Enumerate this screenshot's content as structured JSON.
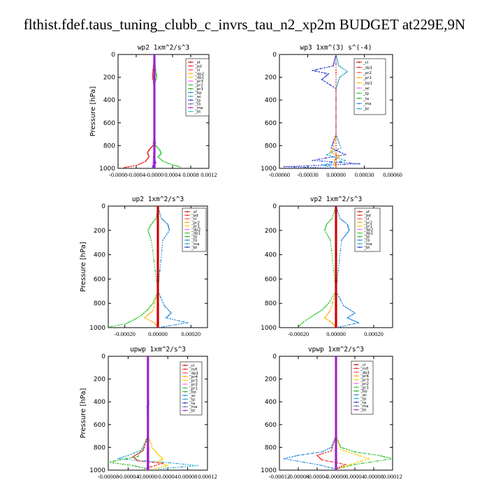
{
  "figure_title": "flthist.fdef.taus_tuning_clubb_c_invrs_tau_n2_xp2m  BUDGET at229E,9N",
  "chart_data": [
    {
      "type": "line",
      "title": "wp2   1xm^2/s^3",
      "ylabel": "Pressure [hPa]",
      "ylim": [
        1000,
        0
      ],
      "xlim": [
        -0.0008,
        0.0012
      ],
      "x_ticks": [
        -0.0008,
        -0.0004,
        0.0,
        0.0004,
        0.0008,
        0.0012
      ],
      "x_tick_labels": [
        "-0.0008",
        "-0.0004",
        "-0.0000",
        "0.0004",
        "0.0008",
        "0.0012"
      ],
      "y_ticks": [
        0,
        200,
        400,
        600,
        800,
        1000
      ],
      "y_tick_labels": [
        "0",
        "200",
        "400",
        "600",
        "800",
        "1000"
      ],
      "legend": [
        "_sf",
        "_pd",
        "_cl",
        "_dp2",
        "_dp1",
        "_pr3",
        "_pr2",
        "_pr1",
        "_bp",
        "_ac",
        "_tp",
        "_ta",
        "_ma",
        "_bt"
      ],
      "series": [
        {
          "name": "_bp",
          "color": "#33cc33",
          "x": [
            0,
            2e-05,
            4e-05,
            5e-05,
            0,
            0,
            3e-05,
            0.00012,
            0.00015,
            8e-05,
            0.0002,
            0.0004,
            0.0006
          ],
          "y": [
            0,
            100,
            170,
            200,
            260,
            700,
            800,
            840,
            870,
            900,
            940,
            970,
            990
          ]
        },
        {
          "name": "_dp1",
          "color": "#ee2222",
          "x": [
            0,
            -2e-05,
            -4e-05,
            -3e-05,
            0,
            0,
            -3e-05,
            -0.0001,
            -0.00015,
            -0.00012,
            -0.0002,
            -0.0004,
            -0.0007
          ],
          "y": [
            0,
            100,
            170,
            220,
            300,
            700,
            800,
            830,
            860,
            900,
            940,
            975,
            995
          ]
        },
        {
          "name": "_pr1",
          "color": "#ff66ff",
          "x": [
            0,
            0,
            1e-05,
            0,
            -1e-05,
            -3e-05,
            -2e-05,
            0
          ],
          "y": [
            0,
            300,
            700,
            800,
            880,
            950,
            985,
            1000
          ]
        },
        {
          "name": "_ta",
          "color": "#2233cc",
          "x": [
            0,
            0,
            1e-05,
            -2e-05,
            3e-05,
            -4e-05,
            0
          ],
          "y": [
            0,
            700,
            850,
            900,
            950,
            985,
            1000
          ]
        },
        {
          "name": "_bt",
          "color": "#9922cc",
          "x": [
            0,
            0,
            0,
            0
          ],
          "y": [
            0,
            400,
            800,
            1000
          ]
        }
      ]
    },
    {
      "type": "line",
      "title": "wp3   1xm^(3) s^(-4)",
      "ylabel": "",
      "ylim": [
        1000,
        0
      ],
      "xlim": [
        -0.0006,
        0.0006
      ],
      "x_ticks": [
        -0.0006,
        -0.0003,
        0.0,
        0.0003,
        0.0006
      ],
      "x_tick_labels": [
        "-0.00060",
        "-0.00030",
        "0.00000",
        "0.00030",
        "0.00060"
      ],
      "y_ticks": [
        0,
        200,
        400,
        600,
        800,
        1000
      ],
      "y_tick_labels": [
        "0",
        "200",
        "400",
        "600",
        "800",
        "1000"
      ],
      "legend": [
        "_cl",
        "_dp1",
        "_pr2",
        "_pr1",
        "_bp1",
        "_ac",
        "_tp",
        "_ta",
        "_ma",
        "_bt"
      ],
      "series": [
        {
          "name": "_ta",
          "color": "#2233cc",
          "x": [
            0,
            -3e-05,
            -0.00025,
            -8e-05,
            -0.00015,
            0,
            0,
            -5e-05,
            0.0001,
            -0.00025,
            0.00025,
            -0.00055,
            0
          ],
          "y": [
            0,
            100,
            140,
            170,
            220,
            300,
            700,
            820,
            880,
            930,
            960,
            985,
            1000
          ]
        },
        {
          "name": "_tp",
          "color": "#22aacc",
          "x": [
            0,
            3e-05,
            0.00012,
            4e-05,
            0,
            0,
            5e-05,
            -0.0001,
            0.0001,
            -0.00015,
            0
          ],
          "y": [
            0,
            100,
            150,
            200,
            300,
            700,
            820,
            880,
            930,
            970,
            1000
          ]
        },
        {
          "name": "_pr1",
          "color": "#ffaa00",
          "x": [
            0,
            0,
            -3e-05,
            -6e-05,
            4e-05,
            -2e-05,
            0
          ],
          "y": [
            0,
            700,
            830,
            860,
            890,
            930,
            1000
          ]
        },
        {
          "name": "_dp1",
          "color": "#ee2222",
          "x": [
            0,
            0,
            0,
            0
          ],
          "y": [
            0,
            400,
            800,
            1000
          ]
        }
      ]
    },
    {
      "type": "line",
      "title": "up2   1xm^2/s^3",
      "ylabel": "Pressure [hPa]",
      "ylim": [
        1000,
        0
      ],
      "xlim": [
        -0.0003,
        0.0003
      ],
      "x_ticks": [
        -0.0002,
        0.0,
        0.0002
      ],
      "x_tick_labels": [
        "-0.00020",
        "0.00000",
        "0.00020"
      ],
      "y_ticks": [
        0,
        200,
        400,
        600,
        800,
        1000
      ],
      "y_tick_labels": [
        "0",
        "200",
        "400",
        "600",
        "800",
        "1000"
      ],
      "legend": [
        "_sf",
        "_pd",
        "_cl",
        "_pr2",
        "_pr1",
        "_dp2",
        "_dp1",
        "_tp",
        "_ta",
        "_ma",
        "_bt"
      ],
      "series": [
        {
          "name": "_pr1",
          "color": "#33cc33",
          "x": [
            0,
            -1e-05,
            -4e-05,
            -6e-05,
            -4e-05,
            0,
            -3e-05,
            -6e-05,
            -0.0001,
            -0.00015,
            -0.0002,
            -0.0003
          ],
          "y": [
            0,
            100,
            150,
            200,
            280,
            700,
            800,
            850,
            900,
            940,
            970,
            995
          ]
        },
        {
          "name": "_tp",
          "color": "#2288dd",
          "x": [
            0,
            2e-05,
            6e-05,
            7e-05,
            3e-05,
            0,
            4e-05,
            8e-05,
            5e-05,
            0.00018,
            0
          ],
          "y": [
            0,
            100,
            150,
            200,
            280,
            700,
            820,
            880,
            920,
            960,
            1000
          ]
        },
        {
          "name": "_pr2",
          "color": "#ffaa00",
          "x": [
            0,
            0,
            -3e-05,
            -8e-05,
            -2e-05,
            0
          ],
          "y": [
            0,
            700,
            860,
            920,
            960,
            1000
          ]
        },
        {
          "name": "_bt",
          "color": "#cc0000",
          "x": [
            0,
            0,
            0,
            0
          ],
          "y": [
            0,
            400,
            800,
            1000
          ]
        }
      ]
    },
    {
      "type": "line",
      "title": "vp2   1xm^2/s^3",
      "ylabel": "",
      "ylim": [
        1000,
        0
      ],
      "xlim": [
        -0.0003,
        0.0003
      ],
      "x_ticks": [
        -0.0002,
        0.0,
        0.0002
      ],
      "x_tick_labels": [
        "-0.00020",
        "0.00000",
        "0.00020"
      ],
      "y_ticks": [
        0,
        200,
        400,
        600,
        800,
        1000
      ],
      "y_tick_labels": [
        "0",
        "200",
        "400",
        "600",
        "800",
        "1000"
      ],
      "legend": [
        "_sf",
        "_pd",
        "_cl",
        "_pr2",
        "_pr1",
        "_dp2",
        "_dp1",
        "_tp",
        "_ta",
        "_ma",
        "_bt"
      ],
      "series": [
        {
          "name": "_pr1",
          "color": "#33cc33",
          "x": [
            0,
            -2e-05,
            -5e-05,
            -6e-05,
            -3e-05,
            0,
            -4e-05,
            -7e-05,
            -0.00012,
            -0.00017,
            -0.0002
          ],
          "y": [
            0,
            100,
            150,
            200,
            280,
            700,
            800,
            850,
            900,
            950,
            995
          ]
        },
        {
          "name": "_tp",
          "color": "#2288dd",
          "x": [
            0,
            2e-05,
            6e-05,
            7e-05,
            3e-05,
            0,
            4e-05,
            0.0001,
            6e-05,
            0.00012,
            0
          ],
          "y": [
            0,
            100,
            150,
            200,
            280,
            700,
            820,
            880,
            920,
            960,
            1000
          ]
        },
        {
          "name": "_pr2",
          "color": "#ffaa00",
          "x": [
            0,
            0,
            -3e-05,
            -6e-05,
            -2e-05,
            0
          ],
          "y": [
            0,
            700,
            860,
            920,
            960,
            1000
          ]
        },
        {
          "name": "_bt",
          "color": "#cc0000",
          "x": [
            0,
            0,
            0,
            0
          ],
          "y": [
            0,
            400,
            800,
            1000
          ]
        }
      ]
    },
    {
      "type": "line",
      "title": "upwp   1xm^2/s^3",
      "ylabel": "Pressure [hPa]",
      "ylim": [
        1000,
        0
      ],
      "xlim": [
        -8e-05,
        0.00012
      ],
      "x_ticks": [
        -8e-05,
        -4e-05,
        0.0,
        4e-05,
        8e-05,
        0.00012
      ],
      "x_tick_labels": [
        "-0.00008",
        "-0.00004",
        "0.00000",
        "0.00004",
        "0.00008",
        "0.00012"
      ],
      "y_ticks": [
        0,
        200,
        400,
        600,
        800,
        1000
      ],
      "y_tick_labels": [
        "0",
        "200",
        "400",
        "600",
        "800",
        "1000"
      ],
      "legend": [
        "_cl",
        "_mfl",
        "_dp1",
        "_pr4",
        "_pr3",
        "_pr2",
        "_pr1",
        "_bp",
        "_ac",
        "_tp",
        "_ta",
        "_ma",
        "_bt"
      ],
      "series": [
        {
          "name": "_tp",
          "color": "#22aacc",
          "x": [
            0,
            0,
            2e-06,
            -2e-06,
            0,
            -1e-05,
            -4e-05,
            -6e-05,
            3e-05,
            0.0001,
            2e-05
          ],
          "y": [
            0,
            300,
            420,
            440,
            700,
            820,
            870,
            900,
            930,
            960,
            990
          ]
        },
        {
          "name": "_pr2",
          "color": "#ffcc00",
          "x": [
            0,
            0,
            1e-05,
            2e-05,
            3e-05,
            2e-05,
            4e-05,
            1e-05
          ],
          "y": [
            0,
            700,
            810,
            860,
            900,
            930,
            960,
            990
          ]
        },
        {
          "name": "_dp1",
          "color": "#ee2222",
          "x": [
            0,
            0,
            -1e-05,
            -3e-05,
            -2e-05,
            3e-05,
            -1e-05
          ],
          "y": [
            0,
            700,
            830,
            880,
            920,
            940,
            990
          ]
        },
        {
          "name": "_bp",
          "color": "#22aa22",
          "x": [
            0,
            0,
            -2e-05,
            -8e-05,
            -3e-05,
            0
          ],
          "y": [
            0,
            700,
            880,
            930,
            960,
            990
          ]
        },
        {
          "name": "_bt",
          "color": "#9922cc",
          "x": [
            0,
            0,
            0,
            0
          ],
          "y": [
            0,
            400,
            800,
            1000
          ]
        }
      ]
    },
    {
      "type": "line",
      "title": "vpwp   1xm^2/s^3",
      "ylabel": "",
      "ylim": [
        1000,
        0
      ],
      "xlim": [
        -0.00012,
        0.00012
      ],
      "x_ticks": [
        -0.00012,
        -8e-05,
        -4e-05,
        0.0,
        4e-05,
        8e-05,
        0.00012
      ],
      "x_tick_labels": [
        "-0.00012",
        "-0.00008",
        "-0.00004",
        "0.00000",
        "0.00004",
        "0.00008",
        "0.00012"
      ],
      "y_ticks": [
        0,
        200,
        400,
        600,
        800,
        1000
      ],
      "y_tick_labels": [
        "0",
        "200",
        "400",
        "600",
        "800",
        "1000"
      ],
      "legend": [
        "_cl",
        "_mfl",
        "_dp1",
        "_pr4",
        "_pr3",
        "_pr2",
        "_pr1",
        "_bp",
        "_ac",
        "_tp",
        "_ta",
        "_ma",
        "_bt"
      ],
      "series": [
        {
          "name": "_bp",
          "color": "#22bb22",
          "x": [
            0,
            0,
            1e-05,
            4e-05,
            9e-05,
            0.00012,
            4e-05,
            0
          ],
          "y": [
            0,
            700,
            800,
            840,
            870,
            900,
            950,
            990
          ]
        },
        {
          "name": "_ta",
          "color": "#2288dd",
          "x": [
            0,
            0,
            -1e-05,
            -3e-05,
            -8e-05,
            -0.00011,
            -4e-05,
            0
          ],
          "y": [
            0,
            700,
            800,
            840,
            870,
            900,
            950,
            990
          ]
        },
        {
          "name": "_pr2",
          "color": "#ffcc00",
          "x": [
            0,
            0,
            1e-05,
            4e-05,
            7e-05,
            3e-05,
            0
          ],
          "y": [
            0,
            700,
            820,
            860,
            900,
            950,
            990
          ]
        },
        {
          "name": "_dp1",
          "color": "#ee2222",
          "x": [
            0,
            0,
            -1e-05,
            -4e-05,
            -3e-05,
            2e-05,
            0
          ],
          "y": [
            0,
            700,
            830,
            870,
            910,
            950,
            990
          ]
        },
        {
          "name": "_bt",
          "color": "#9922cc",
          "x": [
            0,
            0,
            0,
            0
          ],
          "y": [
            0,
            400,
            800,
            1000
          ]
        }
      ]
    }
  ]
}
